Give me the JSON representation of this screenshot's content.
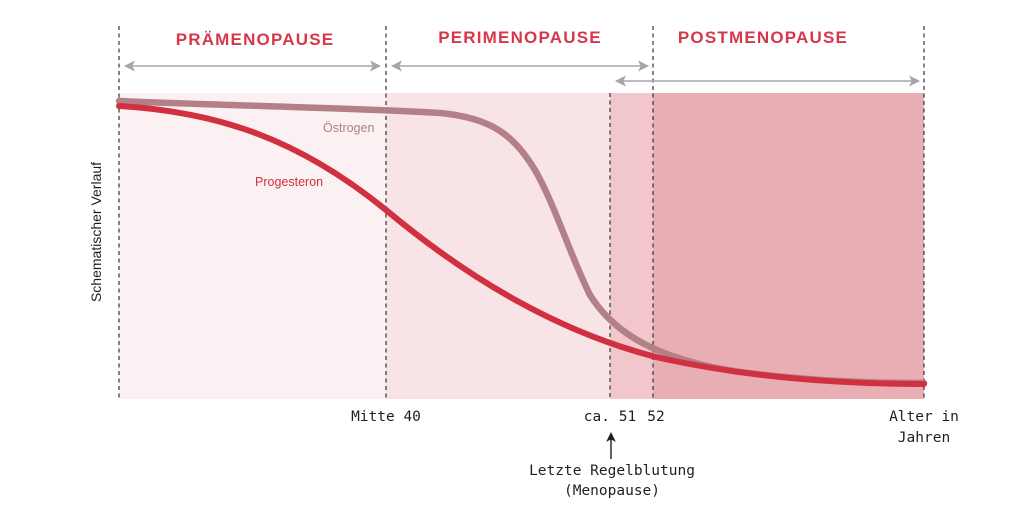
{
  "phases": {
    "praemenopause": "PRÄMENOPAUSE",
    "perimenopause": "PERIMENOPAUSE",
    "postmenopause": "POSTMENOPAUSE"
  },
  "axis": {
    "ylabel": "Schematischer Verlauf",
    "ticks": {
      "mitte40": "Mitte 40",
      "ca51": "ca. 51",
      "t52": "52",
      "alter_line1": "Alter in",
      "alter_line2": "Jahren"
    }
  },
  "curves": {
    "oestrogen": "Östrogen",
    "progesteron": "Progesteron"
  },
  "annotation": {
    "line1": "Letzte Regelblutung",
    "line2": "(Menopause)"
  },
  "colors": {
    "accent_red": "#d0303f",
    "title_red": "#d7374a",
    "oestrogen": "#b38088",
    "zone_pre": "#fcf1f2",
    "zone_peri": "#f8e4e6",
    "zone_transition": "#f1c7cb",
    "zone_post": "#e9aeb4",
    "range_arrows": "#a6a6a6",
    "dashes": "#333333"
  }
}
